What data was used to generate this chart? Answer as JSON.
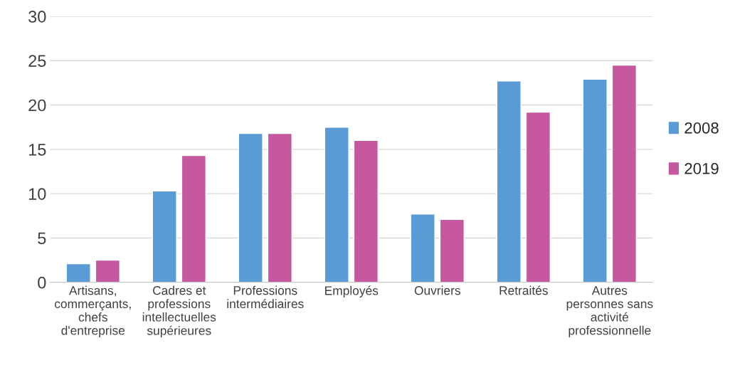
{
  "chart_data": {
    "type": "bar",
    "categories": [
      "Artisans,\ncommerçants,\nchefs\nd'entreprise",
      "Cadres et\nprofessions\nintellectuelles\nsupérieures",
      "Professions\nintermédiaires",
      "Employés",
      "Ouvriers",
      "Retraités",
      "Autres\npersonnes sans\nactivité\nprofessionnelle"
    ],
    "series": [
      {
        "name": "2008",
        "color": "#5b9bd5",
        "values": [
          2.1,
          10.3,
          16.8,
          17.5,
          7.7,
          22.7,
          22.9
        ]
      },
      {
        "name": "2019",
        "color": "#c5589f",
        "values": [
          2.5,
          14.3,
          16.8,
          16.0,
          7.1,
          19.2,
          24.5
        ]
      }
    ],
    "ylim": [
      0,
      30
    ],
    "yticks": [
      0,
      5,
      10,
      15,
      20,
      25,
      30
    ],
    "grid": "y",
    "legend": "right"
  }
}
